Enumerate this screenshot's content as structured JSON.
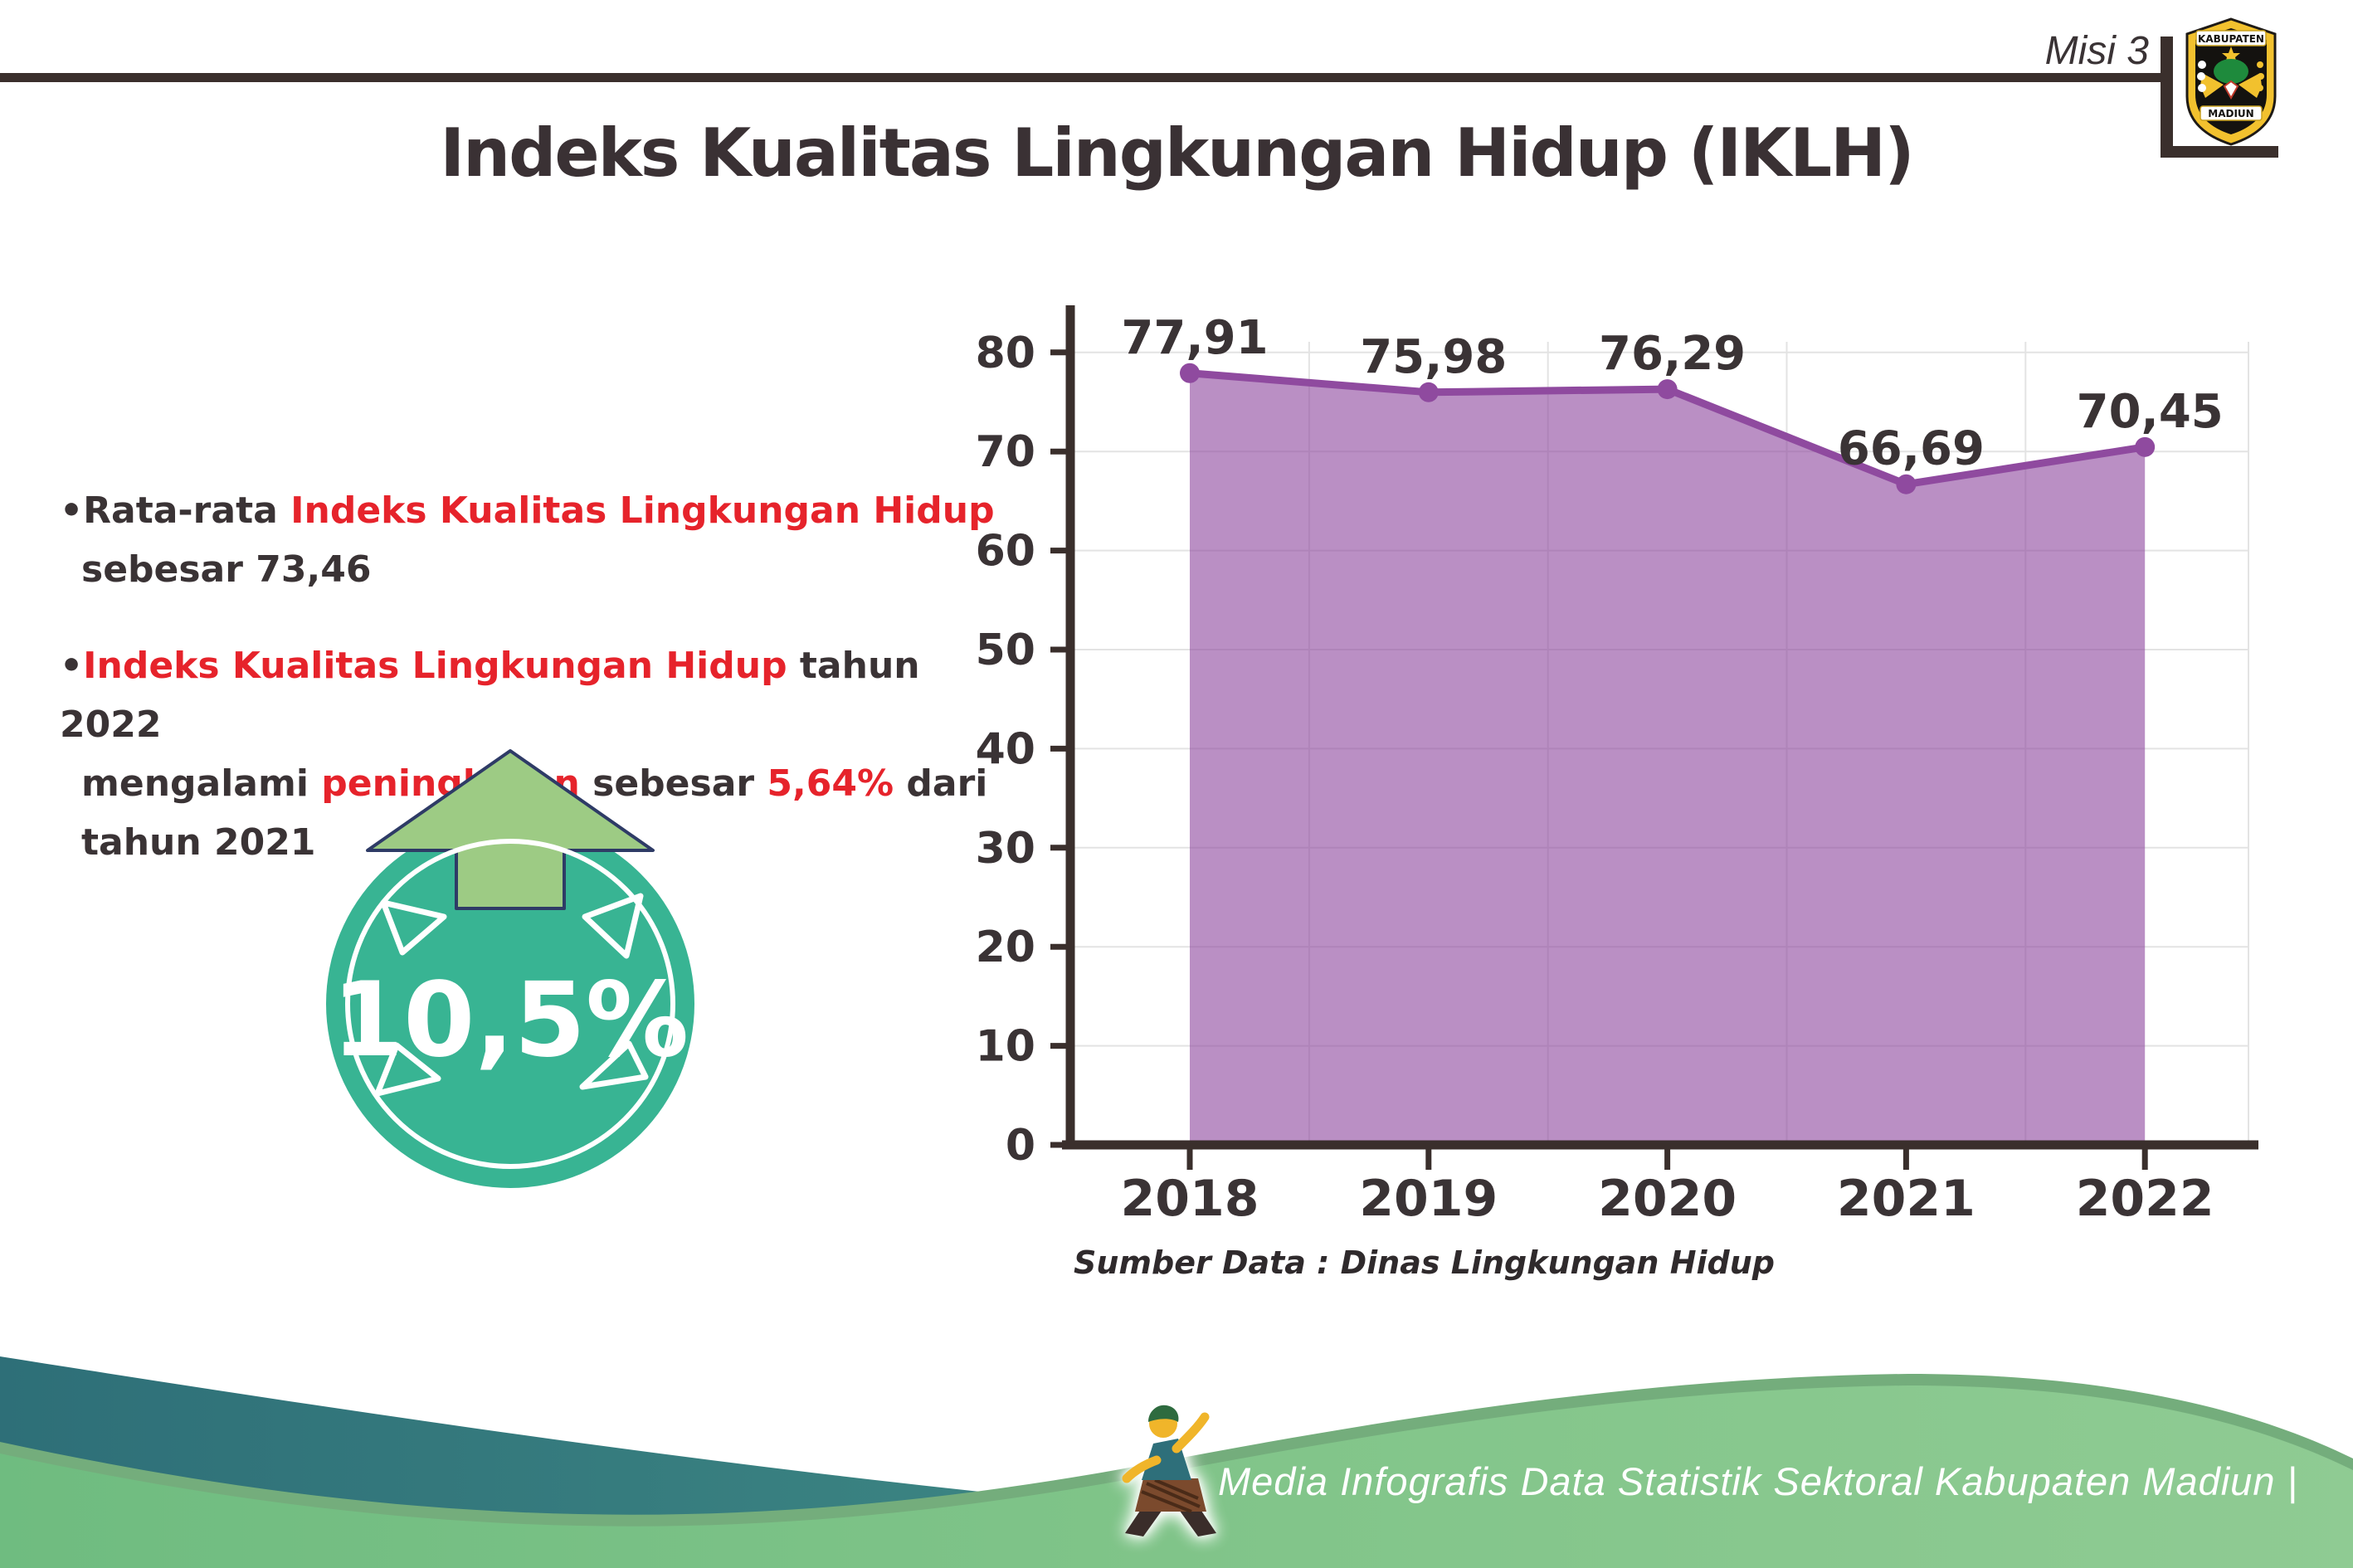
{
  "header": {
    "misi_label": "Misi 3",
    "title": "Indeks Kualitas Lingkungan Hidup (IKLH)",
    "logo": {
      "top_text": "KABUPATEN",
      "bottom_text": "MADIUN"
    }
  },
  "bullets": [
    {
      "lines": [
        [
          {
            "text": "Rata-rata ",
            "color": "dark"
          },
          {
            "text": "Indeks Kualitas Lingkungan Hidup",
            "color": "red"
          }
        ],
        [
          {
            "text": "sebesar 73,46",
            "color": "dark"
          }
        ]
      ]
    },
    {
      "lines": [
        [
          {
            "text": "Indeks Kualitas Lingkungan Hidup",
            "color": "red"
          },
          {
            "text": " tahun 2022",
            "color": "dark"
          }
        ],
        [
          {
            "text": "mengalami ",
            "color": "dark"
          },
          {
            "text": "peningkatan",
            "color": "red"
          },
          {
            "text": " sebesar ",
            "color": "dark"
          },
          {
            "text": "5,64%",
            "color": "red"
          },
          {
            "text": " dari",
            "color": "dark"
          }
        ],
        [
          {
            "text": "tahun 2021",
            "color": "dark"
          }
        ]
      ]
    }
  ],
  "badge": {
    "value": "10,5%"
  },
  "chart_data": {
    "type": "area",
    "title": "",
    "categories": [
      "2018",
      "2019",
      "2020",
      "2021",
      "2022"
    ],
    "values": [
      77.91,
      75.98,
      76.29,
      66.69,
      70.45
    ],
    "value_labels": [
      "77,91",
      "75,98",
      "76,29",
      "66,69",
      "70,45"
    ],
    "yticks": [
      0,
      10,
      20,
      30,
      40,
      50,
      60,
      70,
      80
    ],
    "ylim": [
      0,
      85
    ],
    "grid": "on",
    "legend": "none",
    "source": "Sumber Data : Dinas Lingkungan Hidup"
  },
  "footer": {
    "credit": "Media Infografis Data Statistik Sektoral Kabupaten Madiun |"
  },
  "colors": {
    "accent_red": "#e6232b",
    "text_dark": "#3a3335",
    "rule_dark": "#3a2f2c",
    "chart_line": "#8f4a9f",
    "chart_fill_opacity": 0.62,
    "grid": "#e3e3e3",
    "badge_teal": "#38b493",
    "arrow_green": "#9dcb84",
    "arrow_outline": "#2e3b66",
    "wave_teal_dark": "#2e6f78",
    "wave_teal_light": "#57a08e",
    "wave_green_left": "#6fbc80",
    "wave_green_right": "#8fcb93",
    "wave_green_edge": "#74ad7c",
    "logo_yellow": "#f2c12e"
  }
}
